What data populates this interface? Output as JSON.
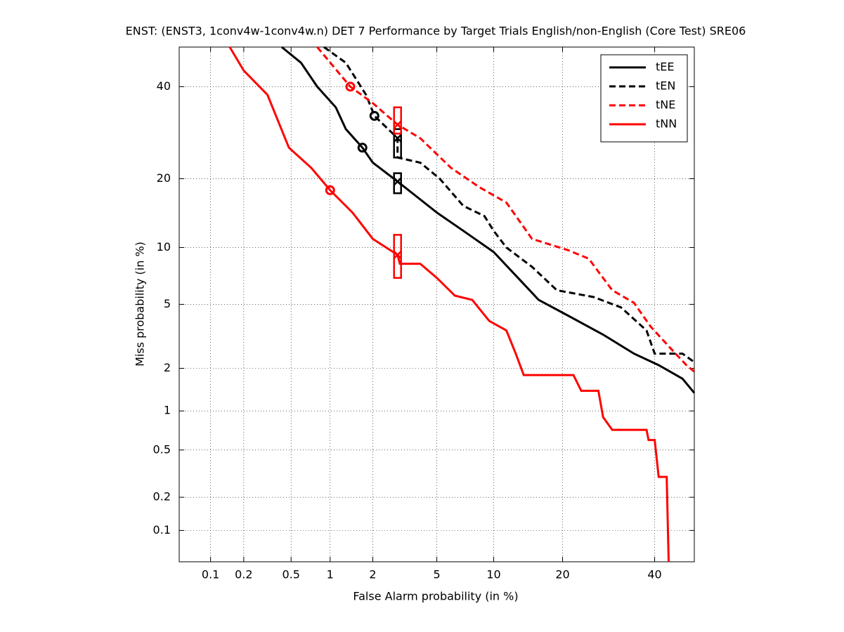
{
  "chart_data": {
    "type": "det",
    "title": "ENST: (ENST3, 1conv4w-1conv4w.n) DET 7 Performance by Target Trials English/non-English (Core Test) SRE06",
    "xlabel": "False Alarm probability (in %)",
    "ylabel": "Miss probability (in %)",
    "scale": "probit",
    "xlim": [
      0.05,
      50
    ],
    "ylim": [
      0.05,
      50
    ],
    "xticks": [
      0.1,
      0.2,
      0.5,
      1,
      2,
      5,
      10,
      20,
      40
    ],
    "yticks": [
      0.1,
      0.2,
      0.5,
      1,
      2,
      5,
      10,
      20,
      40
    ],
    "grid": true,
    "legend": "upper right",
    "series": [
      {
        "name": "tEE",
        "color": "#000000",
        "dash": false,
        "x": [
          0.42,
          0.6,
          0.8,
          1.1,
          1.3,
          1.7,
          2.0,
          2.9,
          4,
          5,
          7,
          10,
          13,
          16,
          21,
          28,
          35,
          41,
          47,
          50
        ],
        "values": [
          50,
          46,
          40,
          35,
          30,
          26,
          23,
          19.5,
          16.5,
          14.5,
          12,
          9.5,
          7,
          5.3,
          4.3,
          3.3,
          2.5,
          2.1,
          1.7,
          1.35
        ],
        "min_point": {
          "x": 1.7,
          "y": 26
        },
        "actual_point": {
          "x": 2.9,
          "y": 19.5,
          "y_low": 17.5,
          "y_high": 21
        }
      },
      {
        "name": "tEN",
        "color": "#000000",
        "dash": true,
        "x": [
          0.9,
          1.3,
          1.8,
          2.05,
          2.9,
          2.9,
          4,
          5.2,
          7,
          9,
          10,
          11.5,
          15,
          19,
          26,
          32,
          38,
          40,
          47,
          50
        ],
        "values": [
          50,
          46,
          38,
          33,
          28,
          24,
          23,
          20,
          15.5,
          14,
          12,
          10,
          8,
          6,
          5.5,
          4.8,
          3.5,
          2.5,
          2.5,
          2.2
        ],
        "min_point": {
          "x": 2.05,
          "y": 33
        },
        "actual_point": {
          "x": 2.9,
          "y": 28,
          "y_low": 24,
          "y_high": 30
        }
      },
      {
        "name": "tNE",
        "color": "#ff0000",
        "dash": true,
        "x": [
          0.8,
          1.4,
          2,
          2.9,
          4,
          6,
          8.5,
          11.5,
          15,
          21,
          25,
          30,
          35,
          39,
          44,
          48,
          50
        ],
        "values": [
          50,
          40,
          36,
          31,
          28,
          22,
          18.5,
          16,
          11,
          9.7,
          8.8,
          6,
          5.1,
          3.7,
          2.7,
          2.1,
          1.9
        ],
        "min_point": {
          "x": 1.4,
          "y": 40
        },
        "actual_point": {
          "x": 2.9,
          "y": 31,
          "y_low": 29,
          "y_high": 35
        }
      },
      {
        "name": "tNN",
        "color": "#ff0000",
        "dash": false,
        "x": [
          0.15,
          0.2,
          0.32,
          0.48,
          0.72,
          1,
          1.45,
          2,
          2.9,
          3,
          4,
          5,
          6.3,
          7.8,
          9.5,
          11.5,
          12.7,
          13.8,
          15,
          22,
          23.5,
          27,
          28,
          30,
          38,
          38.5,
          40,
          41,
          43,
          43.5
        ],
        "values": [
          50,
          44,
          38,
          26,
          22,
          18,
          14.5,
          11,
          9.2,
          8.3,
          8.3,
          7,
          5.6,
          5.3,
          4,
          3.5,
          2.5,
          1.8,
          1.8,
          1.8,
          1.4,
          1.4,
          0.9,
          0.72,
          0.72,
          0.6,
          0.6,
          0.3,
          0.3,
          0.05
        ],
        "min_point": {
          "x": 1,
          "y": 18
        },
        "actual_point": {
          "x": 2.9,
          "y": 9.2,
          "y_low": 7,
          "y_high": 11.5
        }
      }
    ]
  }
}
